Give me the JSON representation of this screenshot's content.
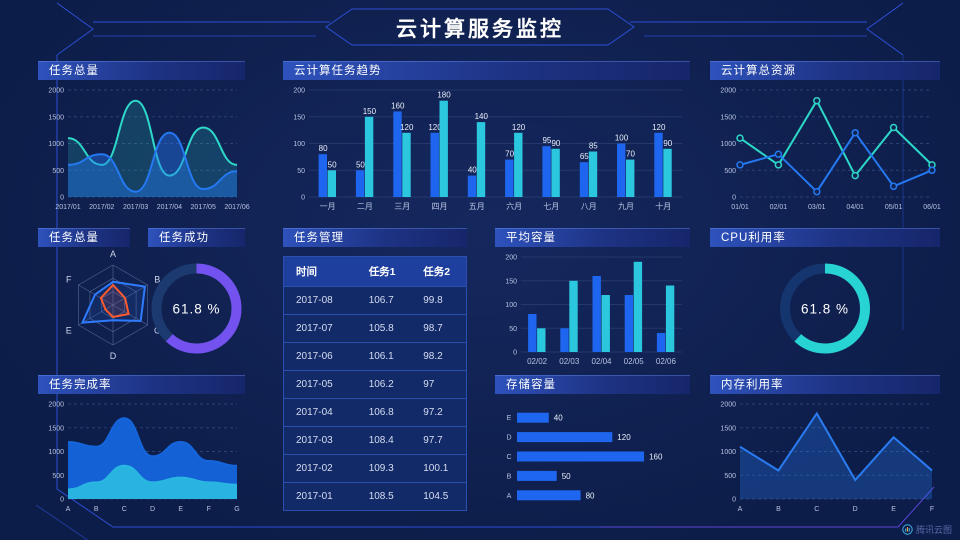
{
  "page": {
    "title": "云计算服务监控",
    "logo_text": "腾讯云图"
  },
  "colors": {
    "bg": "#0d1d49",
    "blue": "#1e66f0",
    "cyan": "#2bc7de",
    "teal": "#2ed8c8",
    "skyblue": "#29b7e2",
    "purple": "#7352f0",
    "red": "#ff5a2e",
    "grid": "#33497f",
    "axis": "#b7c3e2",
    "frame": "#2c4fd4",
    "frame_purple": "#5a45d8"
  },
  "chart_data": [
    {
      "id": "task-total-trend",
      "title": "任务总量",
      "type": "line",
      "smooth": true,
      "markers": false,
      "grid": "dashed",
      "x": [
        "2017/01",
        "2017/02",
        "2017/03",
        "2017/04",
        "2017/05",
        "2017/06"
      ],
      "ylim": [
        0,
        2000
      ],
      "yticks": [
        0,
        500,
        1000,
        1500,
        2000
      ],
      "series": [
        {
          "name": "teal-series",
          "color": "#2ed8c8",
          "fill": 0.18,
          "values": [
            1100,
            600,
            1800,
            400,
            1300,
            600
          ]
        },
        {
          "name": "blue-series",
          "color": "#2479f2",
          "fill": 0.42,
          "values": [
            600,
            800,
            100,
            1200,
            150,
            480
          ]
        }
      ]
    },
    {
      "id": "cloud-task-trend",
      "title": "云计算任务趋势",
      "type": "bar",
      "show_labels": true,
      "grid": "solid",
      "categories": [
        "一月",
        "二月",
        "三月",
        "四月",
        "五月",
        "六月",
        "七月",
        "八月",
        "九月",
        "十月"
      ],
      "ylim": [
        0,
        200
      ],
      "yticks": [
        0,
        50,
        100,
        150,
        200
      ],
      "series": [
        {
          "name": "任务1",
          "color": "#1e66f0",
          "values": [
            80,
            50,
            160,
            120,
            40,
            70,
            95,
            65,
            100,
            120
          ]
        },
        {
          "name": "任务2",
          "color": "#2bc7de",
          "values": [
            50,
            150,
            120,
            180,
            140,
            120,
            90,
            85,
            70,
            90
          ]
        }
      ]
    },
    {
      "id": "cloud-total-resources",
      "title": "云计算总资源",
      "type": "line",
      "smooth": false,
      "markers": true,
      "grid": "dashed",
      "x": [
        "01/01",
        "02/01",
        "03/01",
        "04/01",
        "05/01",
        "06/01"
      ],
      "ylim": [
        0,
        2000
      ],
      "yticks": [
        0,
        500,
        1000,
        1500,
        2000
      ],
      "series": [
        {
          "name": "teal-series",
          "color": "#2ed8c8",
          "fill": 0,
          "values": [
            1100,
            600,
            1800,
            400,
            1300,
            600
          ]
        },
        {
          "name": "blue-series",
          "color": "#2479f2",
          "fill": 0,
          "values": [
            600,
            800,
            100,
            1200,
            200,
            500
          ]
        }
      ]
    },
    {
      "id": "task-total-radar",
      "title": "任务总量",
      "type": "radar",
      "axes": [
        "A",
        "B",
        "C",
        "D",
        "E",
        "F"
      ],
      "series": [
        {
          "name": "radar-blue",
          "color": "#2f7bff",
          "values": [
            0.58,
            0.92,
            0.8,
            0.38,
            0.88,
            0.52
          ]
        },
        {
          "name": "radar-red",
          "color": "#ff5a2e",
          "values": [
            0.5,
            0.35,
            0.45,
            0.3,
            0.22,
            0.35
          ]
        }
      ]
    },
    {
      "id": "task-success-gauge",
      "title": "任务成功",
      "type": "donut",
      "percent": 61.8,
      "label": "61.8 %",
      "color": "#7352f0",
      "track": "#1d3a70"
    },
    {
      "id": "task-management-table",
      "title": "任务管理",
      "type": "table",
      "columns": [
        "时间",
        "任务1",
        "任务2"
      ],
      "rows": [
        [
          "2017-08",
          "106.7",
          "99.8"
        ],
        [
          "2017-07",
          "105.8",
          "98.7"
        ],
        [
          "2017-06",
          "106.1",
          "98.2"
        ],
        [
          "2017-05",
          "106.2",
          "97"
        ],
        [
          "2017-04",
          "106.8",
          "97.2"
        ],
        [
          "2017-03",
          "108.4",
          "97.7"
        ],
        [
          "2017-02",
          "109.3",
          "100.1"
        ],
        [
          "2017-01",
          "108.5",
          "104.5"
        ]
      ]
    },
    {
      "id": "average-capacity",
      "title": "平均容量",
      "type": "bar",
      "show_labels": false,
      "grid": "solid",
      "categories": [
        "02/02",
        "02/03",
        "02/04",
        "02/05",
        "02/06"
      ],
      "ylim": [
        0,
        200
      ],
      "yticks": [
        0,
        50,
        100,
        150,
        200
      ],
      "series": [
        {
          "name": "blue-series",
          "color": "#1e66f0",
          "values": [
            80,
            50,
            160,
            120,
            40
          ]
        },
        {
          "name": "cyan-series",
          "color": "#2bc7de",
          "values": [
            50,
            150,
            120,
            190,
            140
          ]
        }
      ]
    },
    {
      "id": "cpu-utilization-gauge",
      "title": "CPU利用率",
      "type": "donut",
      "percent": 61.8,
      "label": "61.8 %",
      "color": "#27d3d3",
      "track": "#15356e"
    },
    {
      "id": "task-completion-rate",
      "title": "任务完成率",
      "type": "line",
      "smooth": true,
      "markers": false,
      "grid": "dashed",
      "x": [
        "A",
        "B",
        "C",
        "D",
        "E",
        "F",
        "G"
      ],
      "ylim": [
        0,
        2000
      ],
      "yticks": [
        0,
        500,
        1000,
        1500,
        2000
      ],
      "series": [
        {
          "name": "area-blue",
          "color": "#1565dd",
          "fill": 0.95,
          "values": [
            1200,
            1100,
            1700,
            900,
            1200,
            800,
            700
          ]
        },
        {
          "name": "area-cyan",
          "color": "#29b7e2",
          "fill": 0.95,
          "values": [
            200,
            350,
            700,
            350,
            450,
            350,
            300
          ]
        }
      ]
    },
    {
      "id": "storage-capacity",
      "title": "存储容量",
      "type": "hbar",
      "xmax": 180,
      "color": "#1e66f0",
      "categories": [
        "E",
        "D",
        "C",
        "B",
        "A"
      ],
      "values": [
        40,
        120,
        160,
        50,
        80
      ]
    },
    {
      "id": "memory-utilization",
      "title": "内存利用率",
      "type": "line",
      "smooth": false,
      "markers": false,
      "grid": "dashed",
      "x": [
        "A",
        "B",
        "C",
        "D",
        "E",
        "F"
      ],
      "ylim": [
        0,
        2000
      ],
      "yticks": [
        0,
        500,
        1000,
        1500,
        2000
      ],
      "series": [
        {
          "name": "blue-line",
          "color": "#2a7cf2",
          "fill": 0.3,
          "values": [
            1100,
            600,
            1800,
            400,
            1300,
            600
          ]
        }
      ]
    }
  ]
}
